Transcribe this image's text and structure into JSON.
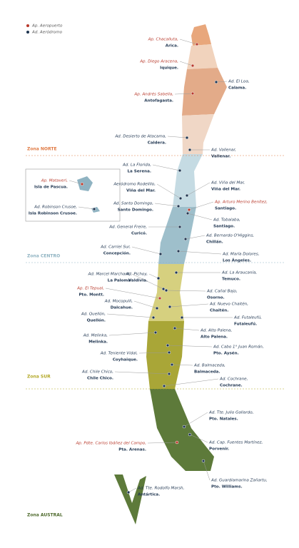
{
  "legend": [
    {
      "label": "Ap. Aeropuerto",
      "color": "#b8392b"
    },
    {
      "label": "Ad. Aeródromo",
      "color": "#1f3550"
    }
  ],
  "zones": [
    {
      "label": "Zona NORTE",
      "color": "#e07b45"
    },
    {
      "label": "Zona CENTRO",
      "color": "#8fb3c2"
    },
    {
      "label": "Zona SUR",
      "color": "#b3a827"
    },
    {
      "label": "Zona AUSTRAL",
      "color": "#4f6b2e"
    }
  ],
  "airports": [
    {
      "name": "Ap. Chacalluta,",
      "city": "Arica.",
      "color": "#b8392b"
    },
    {
      "name": "Ap. Diego Aracena,",
      "city": "Iquique.",
      "color": "#b8392b"
    },
    {
      "name": "Ad. El Loa,",
      "city": "Calama.",
      "color": "#1f3550"
    },
    {
      "name": "Ap. Andrés Sabella,",
      "city": "Antofagasta.",
      "color": "#b8392b"
    },
    {
      "name": "Ad. Desierto de Atacama,",
      "city": "Caldera.",
      "color": "#1f3550"
    },
    {
      "name": "Ad. Vallenar,",
      "city": "Vallenar.",
      "color": "#1f3550"
    },
    {
      "name": "Ad. La Florida,",
      "city": "La Serena.",
      "color": "#1f3550"
    },
    {
      "name": "Aeródromo Rodelillo,",
      "city": "Viña del Mar.",
      "color": "#1f3550"
    },
    {
      "name": "Ad. Viña del Mar,",
      "city": "Viña del Mar.",
      "color": "#1f3550"
    },
    {
      "name": "Ad. Santo Domingo,",
      "city": "Santo Domingo.",
      "color": "#1f3550"
    },
    {
      "name": "Ap. Arturo Merino Benítez,",
      "city": "Santiago.",
      "color": "#b8392b"
    },
    {
      "name": "Ad. Tobalaba,",
      "city": "Santiago.",
      "color": "#1f3550"
    },
    {
      "name": "Ad. General Freire,",
      "city": "Curicó.",
      "color": "#1f3550"
    },
    {
      "name": "Ad. Bernardo O'Higgins,",
      "city": "Chillán.",
      "color": "#1f3550"
    },
    {
      "name": "Ad. Carriel Sur,",
      "city": "Concepción.",
      "color": "#1f3550"
    },
    {
      "name": "Ad. María Dolores,",
      "city": "Los Ángeles.",
      "color": "#1f3550"
    },
    {
      "name": "Ad. Marcel Marchant,",
      "city": "La Paloma",
      "color": "#1f3550"
    },
    {
      "name": "Ad. Pichoy,",
      "city": "Valdivia.",
      "color": "#1f3550"
    },
    {
      "name": "Ad. La Araucanía,",
      "city": "Temuco.",
      "color": "#1f3550"
    },
    {
      "name": "Ap. El Tepual,",
      "city": "Pto. Montt.",
      "color": "#b8392b"
    },
    {
      "name": "Ad. Cañal Bajo,",
      "city": "Osorno.",
      "color": "#1f3550"
    },
    {
      "name": "Ad. Mocopulli,",
      "city": "Dalcahue.",
      "color": "#1f3550"
    },
    {
      "name": "Ad. Nuevo Chaitén,",
      "city": "Chaitén.",
      "color": "#1f3550"
    },
    {
      "name": "Ad. Quellón,",
      "city": "Quellón.",
      "color": "#1f3550"
    },
    {
      "name": "Ad. Futaleufú,",
      "city": "Futaleufú.",
      "color": "#1f3550"
    },
    {
      "name": "Ad. Alto Palena,",
      "city": "Alto Palena.",
      "color": "#1f3550"
    },
    {
      "name": "Ad. Melinka,",
      "city": "Melinka.",
      "color": "#1f3550"
    },
    {
      "name": "Ad. Cabo 1° Juan Román,",
      "city": "Pto. Aysén.",
      "color": "#1f3550"
    },
    {
      "name": "Ad. Teniente Vidal,",
      "city": "Coyhaique.",
      "color": "#1f3550"
    },
    {
      "name": "Ad. Balmaceda,",
      "city": "Balmaceda.",
      "color": "#1f3550"
    },
    {
      "name": "Ad. Chile Chico,",
      "city": "Chile Chico.",
      "color": "#1f3550"
    },
    {
      "name": "Ad. Cochrane,",
      "city": "Cochrane.",
      "color": "#1f3550"
    },
    {
      "name": "Ad. Tte. Julio Gallardo,",
      "city": "Pto. Natales.",
      "color": "#1f3550"
    },
    {
      "name": "Ad. Cap. Fuentes Martínez,",
      "city": "Porvenir.",
      "color": "#1f3550"
    },
    {
      "name": "Ap. Pdte. Carlos Ibáñez del Campo,",
      "city": "Pta. Arenas.",
      "color": "#b8392b"
    },
    {
      "name": "Ad. Guardiamarina Zañartu,",
      "city": "Pto. Williams.",
      "color": "#1f3550"
    },
    {
      "name": "Ad. Tte. Rodolfo Marsh,",
      "city": "Antártica.",
      "color": "#1f3550"
    },
    {
      "name": "Ap. Mataveri,",
      "city": "Isla de Pascua.",
      "color": "#b8392b"
    },
    {
      "name": "Ad. Robinson Crusoe,",
      "city": "Isla Robinson Crusoe.",
      "color": "#1f3550"
    }
  ]
}
